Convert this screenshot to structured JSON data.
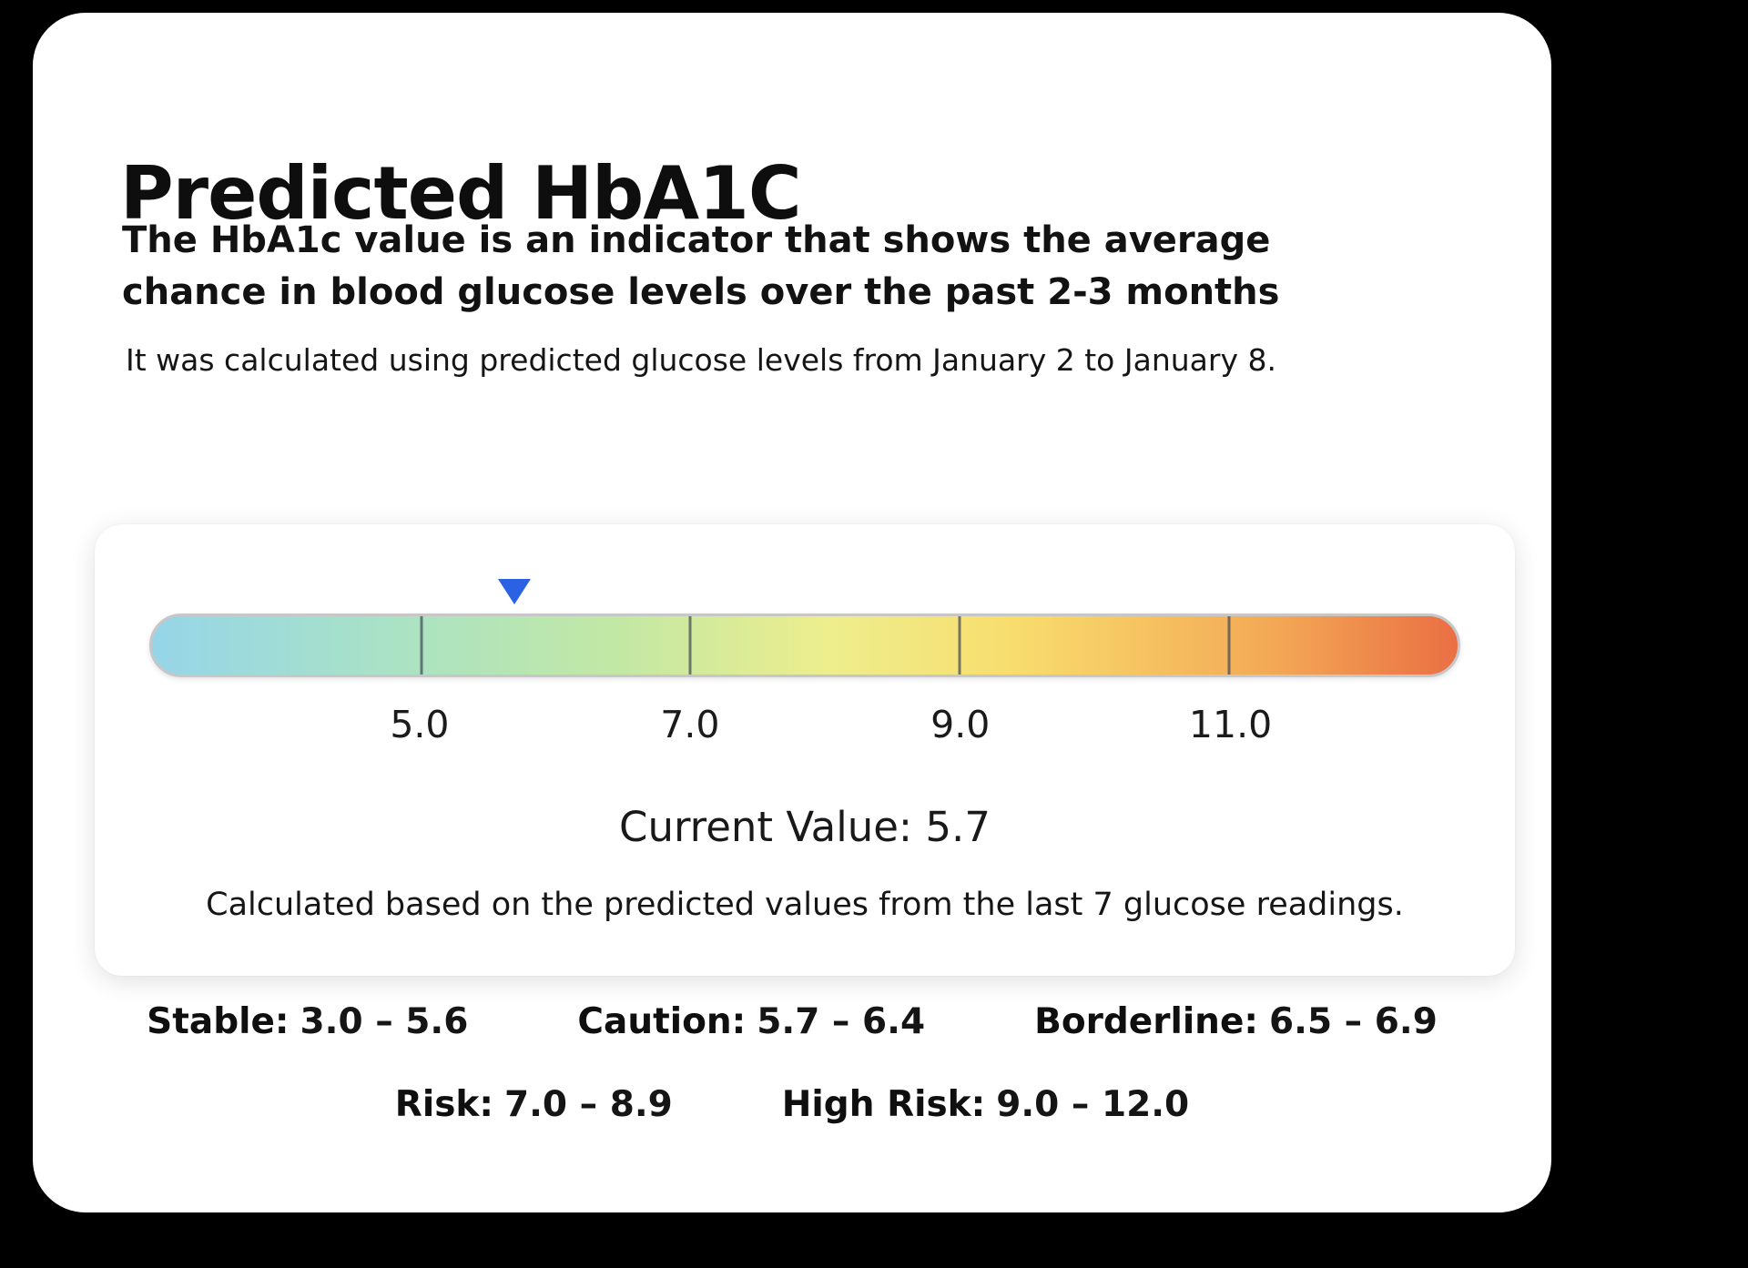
{
  "page": {
    "title": "Predicted HbA1C",
    "subtitle": "The HbA1c value is an indicator that shows the average chance in blood glucose levels over the past 2-3 months",
    "period_note": "It was calculated using predicted glucose levels from January 2 to January 8."
  },
  "gauge": {
    "current_value_label": "Current Value: 5.7",
    "footnote": "Calculated based on the predicted values from the last 7 glucose readings.",
    "marker_color": "#2b62e3",
    "track_border_color": "#c7c7c7"
  },
  "chart_data": {
    "type": "gauge",
    "title": "Predicted HbA1C",
    "axis_min": 3.0,
    "axis_max": 12.7,
    "ticks": [
      5.0,
      7.0,
      9.0,
      11.0
    ],
    "tick_labels": [
      "5.0",
      "7.0",
      "9.0",
      "11.0"
    ],
    "current_value": 5.7,
    "gradient_stops": [
      "#96d5e8 0%",
      "#a9e2c6 18%",
      "#c3e8a4 36%",
      "#eeee8d 52%",
      "#f8dd6e 66%",
      "#f3a855 86%",
      "#ea6f44 100%"
    ],
    "ranges": [
      {
        "label": "Stable",
        "range": "3.0 – 5.6"
      },
      {
        "label": "Caution",
        "range": "5.7 – 6.4"
      },
      {
        "label": "Borderline",
        "range": "6.5 – 6.9"
      },
      {
        "label": "Risk",
        "range": "7.0 – 8.9"
      },
      {
        "label": "High Risk",
        "range": "9.0 – 12.0"
      }
    ]
  },
  "legend": {
    "rows": [
      [
        {
          "label": "Stable:",
          "value": "3.0 – 5.6"
        },
        {
          "label": "Caution:",
          "value": "5.7 – 6.4"
        },
        {
          "label": "Borderline:",
          "value": "6.5 – 6.9"
        }
      ],
      [
        {
          "label": "Risk:",
          "value": "7.0 – 8.9"
        },
        {
          "label": "High Risk:",
          "value": "9.0 – 12.0"
        }
      ]
    ]
  }
}
